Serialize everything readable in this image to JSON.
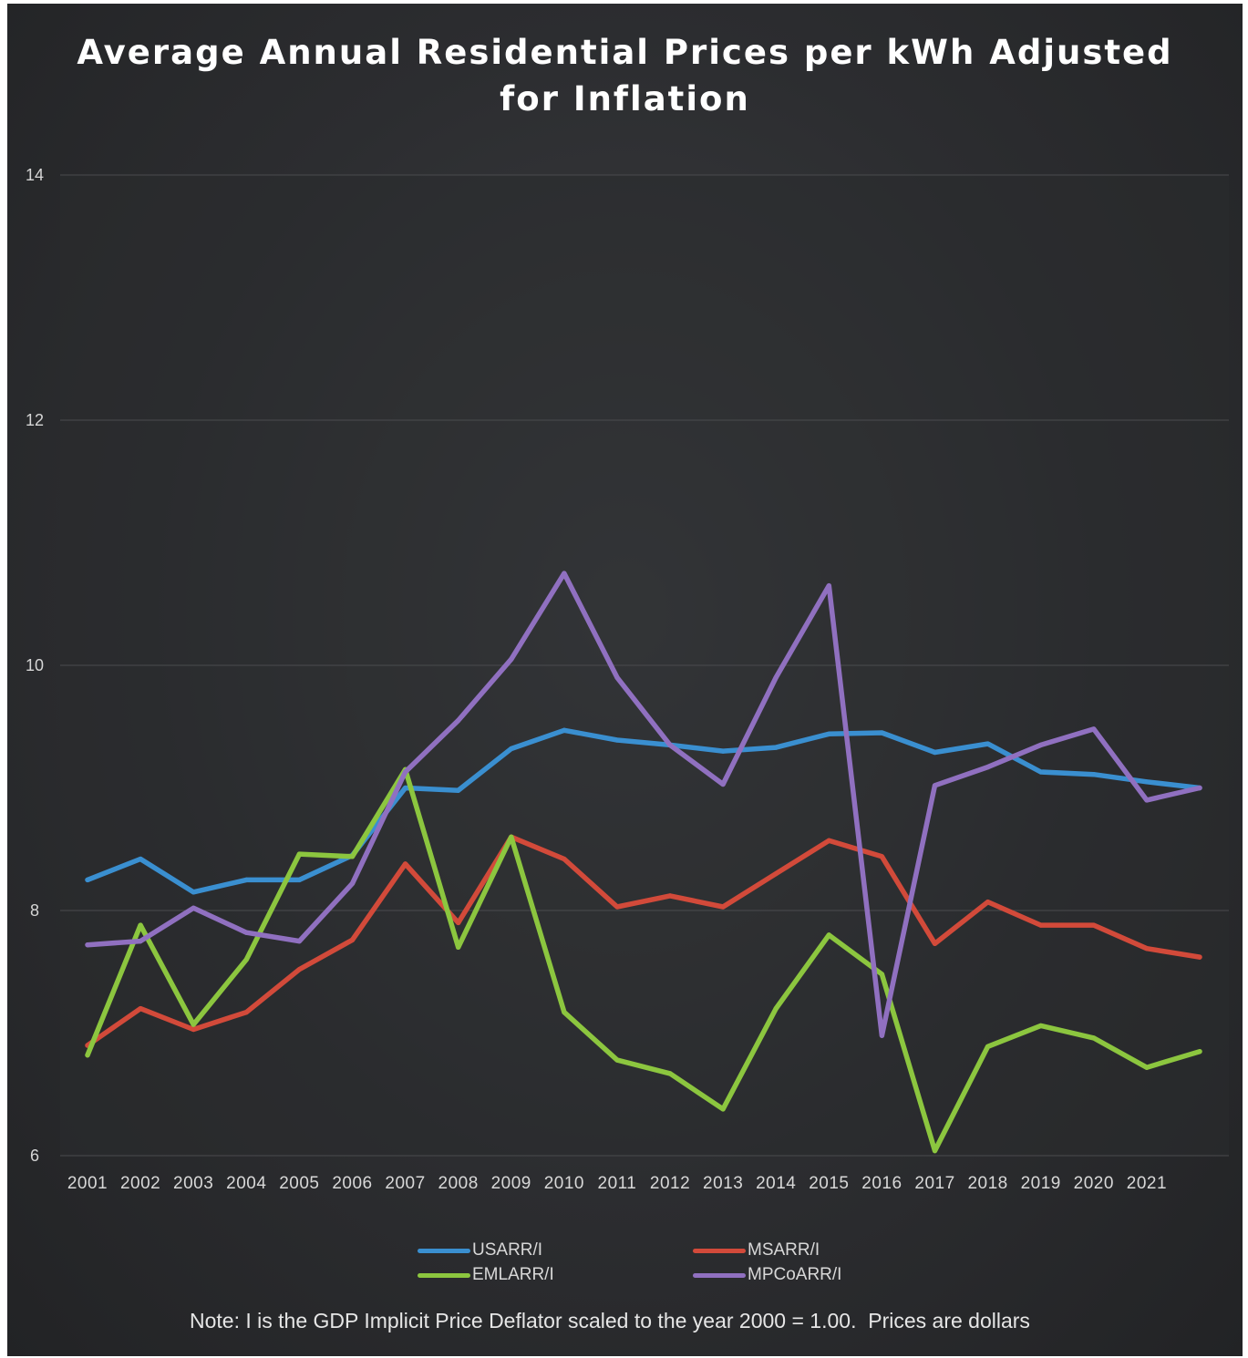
{
  "chart_data": {
    "type": "line",
    "title": "Average Annual Residential Prices per kWh Adjusted for Inflation",
    "title_lines": [
      "Average Annual Residential Prices per kWh Adjusted",
      "for Inflation"
    ],
    "categories": [
      "2001",
      "2002",
      "2003",
      "2004",
      "2005",
      "2006",
      "2007",
      "2008",
      "2009",
      "2010",
      "2011",
      "2012",
      "2013",
      "2014",
      "2015",
      "2016",
      "2017",
      "2018",
      "2019",
      "2020",
      "2021",
      ""
    ],
    "yticks": [
      "6",
      "8",
      "10",
      "12",
      "14"
    ],
    "ylim": [
      6,
      14
    ],
    "grid": true,
    "legend_position": "bottom",
    "series": [
      {
        "name": "USARR/I",
        "color": "#3a8fd0",
        "values": [
          8.25,
          8.42,
          8.15,
          8.25,
          8.25,
          8.45,
          9.0,
          8.98,
          9.32,
          9.47,
          9.39,
          9.35,
          9.3,
          9.33,
          9.44,
          9.45,
          9.29,
          9.36,
          9.13,
          9.11,
          9.05,
          9.0
        ]
      },
      {
        "name": "MSARR/I",
        "color": "#d24a3a",
        "values": [
          6.9,
          7.2,
          7.03,
          7.17,
          7.52,
          7.76,
          8.38,
          7.9,
          8.6,
          8.42,
          8.03,
          8.12,
          8.03,
          8.3,
          8.57,
          8.44,
          7.73,
          8.07,
          7.88,
          7.88,
          7.69,
          7.62
        ]
      },
      {
        "name": "EMLARR/I",
        "color": "#8cc63f",
        "values": [
          6.82,
          7.88,
          7.07,
          7.6,
          8.46,
          8.44,
          9.15,
          7.7,
          8.6,
          7.17,
          6.78,
          6.67,
          6.38,
          7.2,
          7.8,
          7.48,
          6.04,
          6.89,
          7.06,
          6.96,
          6.72,
          6.85
        ]
      },
      {
        "name": "MPCoARR/I",
        "color": "#9070c0",
        "values": [
          7.72,
          7.75,
          8.02,
          7.82,
          7.75,
          8.22,
          9.13,
          9.55,
          10.05,
          10.75,
          9.9,
          9.35,
          9.03,
          9.9,
          10.65,
          6.98,
          9.02,
          9.17,
          9.35,
          9.48,
          8.9,
          9.0
        ]
      }
    ]
  },
  "note": "Note: I is the GDP Implicit Price Deflator scaled to the year 2000 = 1.00.  Prices are dollars"
}
